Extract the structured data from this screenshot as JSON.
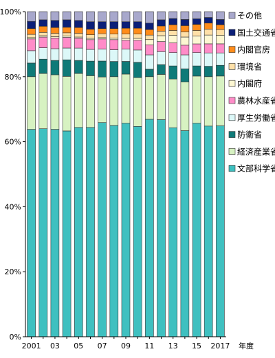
{
  "chart_data": {
    "type": "bar",
    "stacked": true,
    "percent_scale": true,
    "title": "",
    "xlabel": "年度",
    "ylabel": "",
    "ylim": [
      0,
      100
    ],
    "y_ticks": [
      "0%",
      "20%",
      "40%",
      "60%",
      "80%",
      "100%"
    ],
    "categories": [
      "2001",
      "2002",
      "2003",
      "2004",
      "2005",
      "2006",
      "2007",
      "2008",
      "2009",
      "2010",
      "2011",
      "2012",
      "2013",
      "2014",
      "2015",
      "2016",
      "2017"
    ],
    "x_tick_labels": [
      "2001",
      "",
      "03",
      "",
      "05",
      "",
      "07",
      "",
      "09",
      "",
      "11",
      "",
      "13",
      "",
      "15",
      "",
      "2017"
    ],
    "grid": false,
    "legend_position": "right",
    "series": [
      {
        "name": "文部科学省",
        "color": "#3fc0c0",
        "values": [
          63.8,
          64.0,
          63.8,
          63.3,
          64.4,
          64.4,
          65.9,
          65.0,
          65.7,
          64.7,
          66.9,
          66.8,
          64.3,
          63.4,
          65.7,
          64.8,
          64.9
        ]
      },
      {
        "name": "経済産業省",
        "color": "#d7f2c2",
        "values": [
          16.2,
          17.0,
          16.8,
          16.8,
          16.6,
          15.9,
          14.0,
          15.0,
          15.1,
          15.0,
          13.1,
          13.9,
          15.0,
          15.0,
          14.5,
          15.2,
          15.3
        ]
      },
      {
        "name": "防衛省",
        "color": "#0f7a78",
        "values": [
          4.2,
          4.4,
          4.4,
          5.1,
          4.0,
          4.5,
          4.9,
          4.7,
          3.9,
          4.7,
          2.3,
          3.0,
          4.0,
          4.0,
          3.1,
          3.2,
          3.3
        ]
      },
      {
        "name": "厚生労働省",
        "color": "#dcf8f8",
        "values": [
          3.8,
          3.5,
          3.6,
          3.6,
          3.8,
          3.6,
          3.7,
          3.6,
          3.8,
          3.8,
          4.4,
          4.0,
          4.1,
          4.3,
          4.1,
          4.1,
          3.8
        ]
      },
      {
        "name": "農林水産省",
        "color": "#ff8cc8",
        "values": [
          3.6,
          3.3,
          3.3,
          3.3,
          3.0,
          3.0,
          3.1,
          3.1,
          2.7,
          3.0,
          3.1,
          3.1,
          3.0,
          3.0,
          2.7,
          2.8,
          2.8
        ]
      },
      {
        "name": "内閣府",
        "color": "#fdf7d2",
        "values": [
          0.4,
          0.4,
          0.4,
          0.4,
          0.4,
          0.4,
          0.4,
          0.5,
          0.6,
          0.6,
          1.6,
          1.8,
          2.3,
          2.5,
          2.4,
          2.7,
          2.6
        ]
      },
      {
        "name": "環境省",
        "color": "#ffe0a8",
        "values": [
          1.0,
          1.0,
          1.0,
          1.0,
          1.1,
          1.1,
          1.2,
          1.2,
          1.3,
          1.3,
          1.4,
          1.4,
          1.5,
          1.6,
          1.7,
          1.8,
          1.8
        ]
      },
      {
        "name": "内閣官房",
        "color": "#ff8c1a",
        "values": [
          1.8,
          1.9,
          1.8,
          1.7,
          1.8,
          1.7,
          1.6,
          1.7,
          1.8,
          1.8,
          1.7,
          1.6,
          1.8,
          1.9,
          1.9,
          1.9,
          1.5
        ]
      },
      {
        "name": "国土交通省",
        "color": "#0b1f78",
        "values": [
          2.2,
          2.0,
          2.2,
          2.3,
          2.2,
          2.3,
          2.1,
          2.1,
          2.0,
          2.0,
          2.0,
          1.9,
          1.9,
          1.9,
          1.7,
          1.7,
          1.6
        ]
      },
      {
        "name": "その他",
        "color": "#a8a8cc",
        "values": [
          3.0,
          2.5,
          2.7,
          2.5,
          2.7,
          3.1,
          3.1,
          3.1,
          3.1,
          3.1,
          3.5,
          2.5,
          2.1,
          2.4,
          2.2,
          1.8,
          2.4
        ]
      }
    ]
  }
}
